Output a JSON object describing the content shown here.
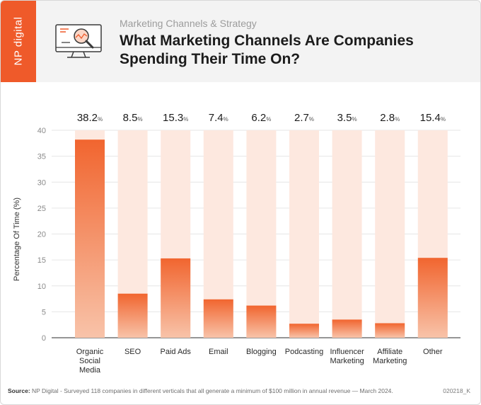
{
  "header": {
    "brand": "NP digital",
    "subtitle": "Marketing Channels & Strategy",
    "title": "What Marketing Channels Are Companies Spending Their Time On?"
  },
  "colors": {
    "accent": "#ef5a2a",
    "bar_gradient_top": "#f1652f",
    "bar_gradient_bottom": "#f8c3a9",
    "track": "#fde8df"
  },
  "chart_data": {
    "type": "bar",
    "title": "What Marketing Channels Are Companies Spending Their Time On?",
    "xlabel": "",
    "ylabel": "Percentage Of Time (%)",
    "ylim": [
      0,
      40
    ],
    "yticks": [
      0,
      5,
      10,
      15,
      20,
      25,
      30,
      35,
      40
    ],
    "grid": true,
    "value_suffix": "%",
    "categories": [
      "Organic Social Media",
      "SEO",
      "Paid Ads",
      "Email",
      "Blogging",
      "Podcasting",
      "Influencer Marketing",
      "Affiliate Marketing",
      "Other"
    ],
    "category_lines": [
      [
        "Organic",
        "Social",
        "Media"
      ],
      [
        "SEO"
      ],
      [
        "Paid Ads"
      ],
      [
        "Email"
      ],
      [
        "Blogging"
      ],
      [
        "Podcasting"
      ],
      [
        "Influencer",
        "Marketing"
      ],
      [
        "Affiliate",
        "Marketing"
      ],
      [
        "Other"
      ]
    ],
    "values": [
      38.2,
      8.5,
      15.3,
      7.4,
      6.2,
      2.7,
      3.5,
      2.8,
      15.4
    ],
    "value_labels": [
      "38.2",
      "8.5",
      "15.3",
      "7.4",
      "6.2",
      "2.7",
      "3.5",
      "2.8",
      "15.4"
    ]
  },
  "footer": {
    "source_label": "Source:",
    "source_text": "NP Digital - Surveyed 118 companies in different verticals that all generate a minimum of $100 million in annual revenue — March 2024.",
    "code": "020218_K"
  }
}
